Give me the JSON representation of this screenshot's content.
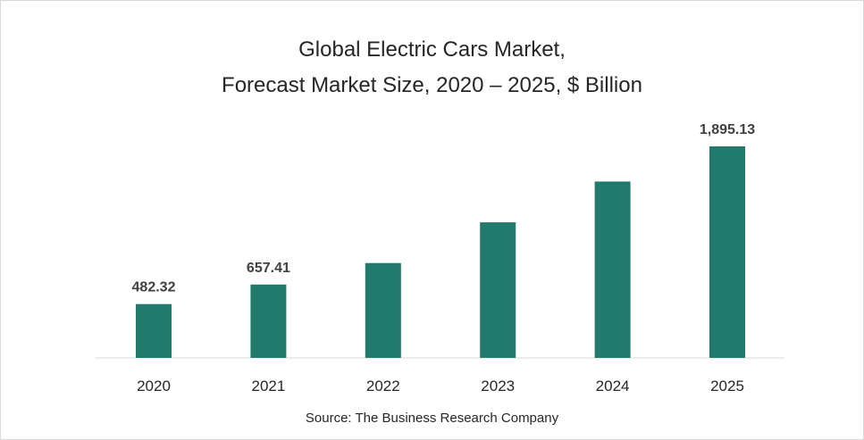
{
  "chart_data": {
    "type": "bar",
    "title_lines": [
      "Global Electric Cars Market,",
      "Forecast Market Size, 2020 – 2025, $ Billion"
    ],
    "categories": [
      "2020",
      "2021",
      "2022",
      "2023",
      "2024",
      "2025"
    ],
    "values": [
      482.32,
      657.41,
      850,
      1215,
      1580,
      1895.13
    ],
    "data_labels": [
      "482.32",
      "657.41",
      "",
      "",
      "",
      "1,895.13"
    ],
    "bar_color": "#217a6b",
    "ylim": [
      0,
      1895.13
    ],
    "grid": false,
    "source": "Source: The Business Research Company"
  }
}
